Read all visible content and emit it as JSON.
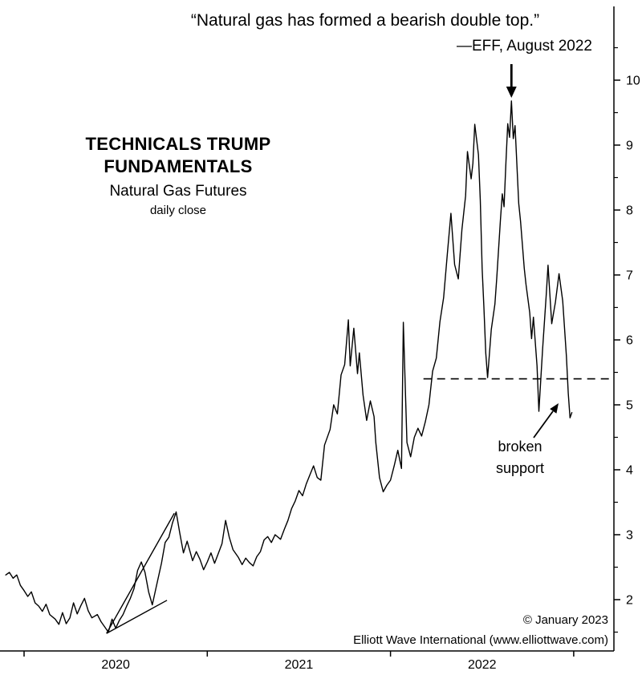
{
  "header": {
    "quote": "“Natural gas has formed a bearish double top.”",
    "attribution": "—EFF, August 2022"
  },
  "title_block": {
    "line1": "TECHNICALS TRUMP",
    "line2": "FUNDAMENTALS",
    "line3": "Natural Gas Futures",
    "line4": "daily close"
  },
  "annotations": {
    "broken_support_line1": "broken",
    "broken_support_line2": "support"
  },
  "footer": {
    "copyright": "© January 2023",
    "source": "Elliott Wave International (www.elliottwave.com)"
  },
  "colors": {
    "line": "#000000",
    "background": "#ffffff"
  },
  "chart_data": {
    "type": "line",
    "title": "TECHNICALS TRUMP FUNDAMENTALS",
    "subtitle": "Natural Gas Futures",
    "sampling": "daily close",
    "xlabel": "",
    "ylabel": "",
    "grid": false,
    "legend": "none",
    "xlim": [
      2019.88,
      2023.22
    ],
    "ylim": [
      1.2,
      11.15
    ],
    "x_axis": {
      "tick_years": [
        2020,
        2021,
        2022
      ],
      "boundary_ticks": [
        2020,
        2021,
        2022,
        2023
      ]
    },
    "y_axis": {
      "ticks": [
        2,
        3,
        4,
        5,
        6,
        7,
        8,
        9,
        10
      ],
      "minor_step": 0.5,
      "side": "right"
    },
    "support_level": 5.4,
    "support_span_years": [
      2022.18,
      2023.22
    ],
    "double_top_arrow_year": 2022.66,
    "double_top_price": 9.68,
    "triangle_lines": [
      [
        [
          2020.45,
          1.48
        ],
        [
          2020.82,
          3.33
        ]
      ],
      [
        [
          2020.45,
          1.48
        ],
        [
          2020.78,
          1.99
        ]
      ]
    ],
    "series": [
      {
        "name": "Natural Gas Futures daily close",
        "points": [
          [
            2019.9,
            2.38
          ],
          [
            2019.92,
            2.42
          ],
          [
            2019.94,
            2.33
          ],
          [
            2019.96,
            2.38
          ],
          [
            2019.98,
            2.22
          ],
          [
            2020.0,
            2.14
          ],
          [
            2020.02,
            2.05
          ],
          [
            2020.04,
            2.12
          ],
          [
            2020.06,
            1.95
          ],
          [
            2020.08,
            1.9
          ],
          [
            2020.1,
            1.82
          ],
          [
            2020.12,
            1.93
          ],
          [
            2020.14,
            1.77
          ],
          [
            2020.17,
            1.7
          ],
          [
            2020.19,
            1.62
          ],
          [
            2020.21,
            1.8
          ],
          [
            2020.23,
            1.63
          ],
          [
            2020.25,
            1.72
          ],
          [
            2020.27,
            1.95
          ],
          [
            2020.29,
            1.78
          ],
          [
            2020.31,
            1.91
          ],
          [
            2020.33,
            2.02
          ],
          [
            2020.35,
            1.83
          ],
          [
            2020.37,
            1.72
          ],
          [
            2020.4,
            1.77
          ],
          [
            2020.42,
            1.66
          ],
          [
            2020.44,
            1.58
          ],
          [
            2020.46,
            1.5
          ],
          [
            2020.48,
            1.7
          ],
          [
            2020.5,
            1.56
          ],
          [
            2020.52,
            1.68
          ],
          [
            2020.54,
            1.77
          ],
          [
            2020.56,
            1.9
          ],
          [
            2020.58,
            2.02
          ],
          [
            2020.6,
            2.17
          ],
          [
            2020.62,
            2.45
          ],
          [
            2020.64,
            2.58
          ],
          [
            2020.66,
            2.42
          ],
          [
            2020.68,
            2.12
          ],
          [
            2020.7,
            1.92
          ],
          [
            2020.72,
            2.18
          ],
          [
            2020.75,
            2.56
          ],
          [
            2020.77,
            2.88
          ],
          [
            2020.79,
            2.96
          ],
          [
            2020.81,
            3.18
          ],
          [
            2020.83,
            3.35
          ],
          [
            2020.85,
            3.02
          ],
          [
            2020.87,
            2.72
          ],
          [
            2020.89,
            2.9
          ],
          [
            2020.92,
            2.6
          ],
          [
            2020.94,
            2.74
          ],
          [
            2020.96,
            2.62
          ],
          [
            2020.98,
            2.46
          ],
          [
            2021.0,
            2.58
          ],
          [
            2021.02,
            2.72
          ],
          [
            2021.04,
            2.56
          ],
          [
            2021.06,
            2.71
          ],
          [
            2021.08,
            2.86
          ],
          [
            2021.1,
            3.22
          ],
          [
            2021.12,
            2.96
          ],
          [
            2021.14,
            2.77
          ],
          [
            2021.17,
            2.65
          ],
          [
            2021.19,
            2.54
          ],
          [
            2021.21,
            2.64
          ],
          [
            2021.23,
            2.57
          ],
          [
            2021.25,
            2.52
          ],
          [
            2021.27,
            2.66
          ],
          [
            2021.29,
            2.74
          ],
          [
            2021.31,
            2.92
          ],
          [
            2021.33,
            2.97
          ],
          [
            2021.35,
            2.88
          ],
          [
            2021.37,
            3.0
          ],
          [
            2021.4,
            2.93
          ],
          [
            2021.42,
            3.08
          ],
          [
            2021.44,
            3.22
          ],
          [
            2021.46,
            3.4
          ],
          [
            2021.48,
            3.52
          ],
          [
            2021.5,
            3.68
          ],
          [
            2021.52,
            3.6
          ],
          [
            2021.54,
            3.78
          ],
          [
            2021.56,
            3.92
          ],
          [
            2021.58,
            4.06
          ],
          [
            2021.6,
            3.88
          ],
          [
            2021.62,
            3.84
          ],
          [
            2021.64,
            4.38
          ],
          [
            2021.67,
            4.62
          ],
          [
            2021.69,
            5.0
          ],
          [
            2021.71,
            4.86
          ],
          [
            2021.73,
            5.46
          ],
          [
            2021.75,
            5.62
          ],
          [
            2021.77,
            6.31
          ],
          [
            2021.78,
            5.6
          ],
          [
            2021.8,
            6.18
          ],
          [
            2021.82,
            5.48
          ],
          [
            2021.83,
            5.8
          ],
          [
            2021.85,
            5.15
          ],
          [
            2021.87,
            4.76
          ],
          [
            2021.89,
            5.06
          ],
          [
            2021.91,
            4.82
          ],
          [
            2021.92,
            4.42
          ],
          [
            2021.94,
            3.88
          ],
          [
            2021.96,
            3.66
          ],
          [
            2021.98,
            3.76
          ],
          [
            2022.0,
            3.84
          ],
          [
            2022.02,
            4.06
          ],
          [
            2022.04,
            4.3
          ],
          [
            2022.06,
            4.02
          ],
          [
            2022.07,
            6.27
          ],
          [
            2022.09,
            4.42
          ],
          [
            2022.11,
            4.2
          ],
          [
            2022.13,
            4.5
          ],
          [
            2022.15,
            4.64
          ],
          [
            2022.17,
            4.52
          ],
          [
            2022.19,
            4.74
          ],
          [
            2022.21,
            5.0
          ],
          [
            2022.23,
            5.52
          ],
          [
            2022.25,
            5.72
          ],
          [
            2022.27,
            6.28
          ],
          [
            2022.29,
            6.65
          ],
          [
            2022.31,
            7.32
          ],
          [
            2022.33,
            7.95
          ],
          [
            2022.35,
            7.16
          ],
          [
            2022.37,
            6.94
          ],
          [
            2022.39,
            7.7
          ],
          [
            2022.41,
            8.22
          ],
          [
            2022.42,
            8.9
          ],
          [
            2022.44,
            8.48
          ],
          [
            2022.45,
            8.72
          ],
          [
            2022.46,
            9.32
          ],
          [
            2022.48,
            8.85
          ],
          [
            2022.49,
            8.15
          ],
          [
            2022.5,
            7.1
          ],
          [
            2022.51,
            6.5
          ],
          [
            2022.52,
            5.8
          ],
          [
            2022.53,
            5.42
          ],
          [
            2022.55,
            6.16
          ],
          [
            2022.57,
            6.55
          ],
          [
            2022.58,
            6.95
          ],
          [
            2022.6,
            7.85
          ],
          [
            2022.61,
            8.25
          ],
          [
            2022.62,
            8.05
          ],
          [
            2022.63,
            8.72
          ],
          [
            2022.64,
            9.33
          ],
          [
            2022.65,
            9.12
          ],
          [
            2022.66,
            9.68
          ],
          [
            2022.67,
            9.1
          ],
          [
            2022.68,
            9.3
          ],
          [
            2022.7,
            8.1
          ],
          [
            2022.71,
            7.82
          ],
          [
            2022.73,
            7.1
          ],
          [
            2022.74,
            6.85
          ],
          [
            2022.76,
            6.42
          ],
          [
            2022.77,
            6.02
          ],
          [
            2022.78,
            6.35
          ],
          [
            2022.8,
            5.6
          ],
          [
            2022.81,
            4.9
          ],
          [
            2022.83,
            5.85
          ],
          [
            2022.85,
            6.7
          ],
          [
            2022.86,
            7.15
          ],
          [
            2022.88,
            6.25
          ],
          [
            2022.9,
            6.58
          ],
          [
            2022.92,
            7.02
          ],
          [
            2022.94,
            6.6
          ],
          [
            2022.96,
            5.75
          ],
          [
            2022.97,
            5.18
          ],
          [
            2022.98,
            4.8
          ],
          [
            2022.99,
            4.88
          ]
        ]
      }
    ]
  }
}
